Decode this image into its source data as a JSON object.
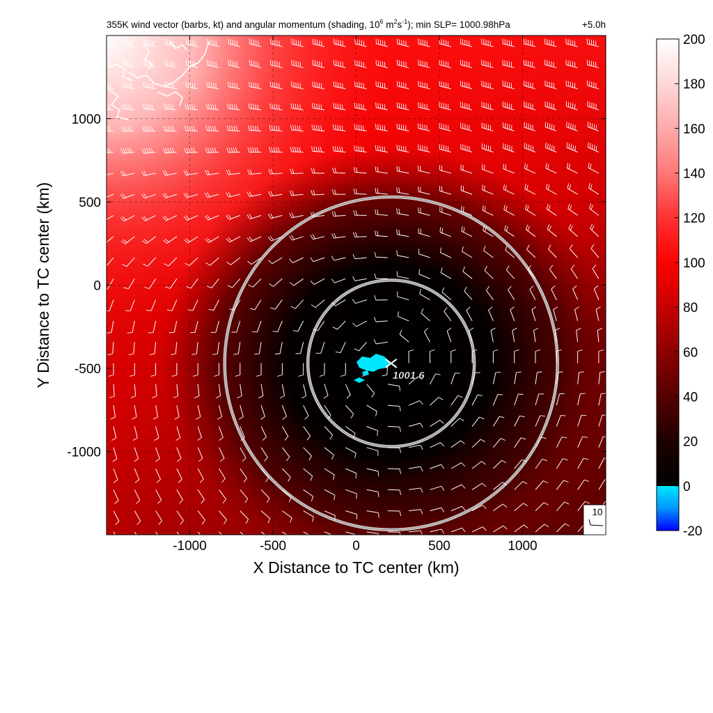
{
  "title": {
    "main": "355K wind vector (barbs, kt) and angular momentum (shading, 10",
    "exp1": "6",
    "mid1": " m",
    "exp2": "2",
    "mid2": "s",
    "exp3": "-1",
    "tail": "); min SLP= 1000.98hPa",
    "time": "+5.0h"
  },
  "chart_data": {
    "type": "heatmap",
    "title": "355K wind vector (barbs, kt) and angular momentum (shading, 10^6 m^2 s^-1); min SLP= 1000.98hPa +5.0h",
    "xlabel": "X Distance to TC center (km)",
    "ylabel": "Y Distance to TC center (km)",
    "xlim": [
      -1500,
      1500
    ],
    "ylim": [
      -1500,
      1500
    ],
    "xticks": [
      -1000,
      -500,
      0,
      500,
      1000
    ],
    "yticks": [
      -1000,
      -500,
      0,
      500,
      1000
    ],
    "grid": true,
    "colorbar": {
      "range": [
        -20,
        200
      ],
      "ticks": [
        -20,
        0,
        20,
        40,
        60,
        80,
        100,
        120,
        140,
        160,
        180,
        200
      ],
      "colors": [
        {
          "value": -20,
          "color": "#0000ff"
        },
        {
          "value": -10,
          "color": "#0096ff"
        },
        {
          "value": 0,
          "color": "#00e6ff"
        },
        {
          "value": 0.01,
          "color": "#000000"
        },
        {
          "value": 20,
          "color": "#1e0000"
        },
        {
          "value": 40,
          "color": "#550000"
        },
        {
          "value": 60,
          "color": "#8c0000"
        },
        {
          "value": 80,
          "color": "#c80000"
        },
        {
          "value": 100,
          "color": "#ff0000"
        },
        {
          "value": 120,
          "color": "#ff3232"
        },
        {
          "value": 140,
          "color": "#ff7878"
        },
        {
          "value": 160,
          "color": "#ffaaaa"
        },
        {
          "value": 180,
          "color": "#ffd7d7"
        },
        {
          "value": 200,
          "color": "#ffffff"
        }
      ]
    },
    "storm_center": {
      "x": 210,
      "y": -470,
      "label": "1001.6"
    },
    "range_rings_km": [
      500,
      1000
    ],
    "barb_reference": {
      "label": "10",
      "speed_kt": 10
    }
  }
}
